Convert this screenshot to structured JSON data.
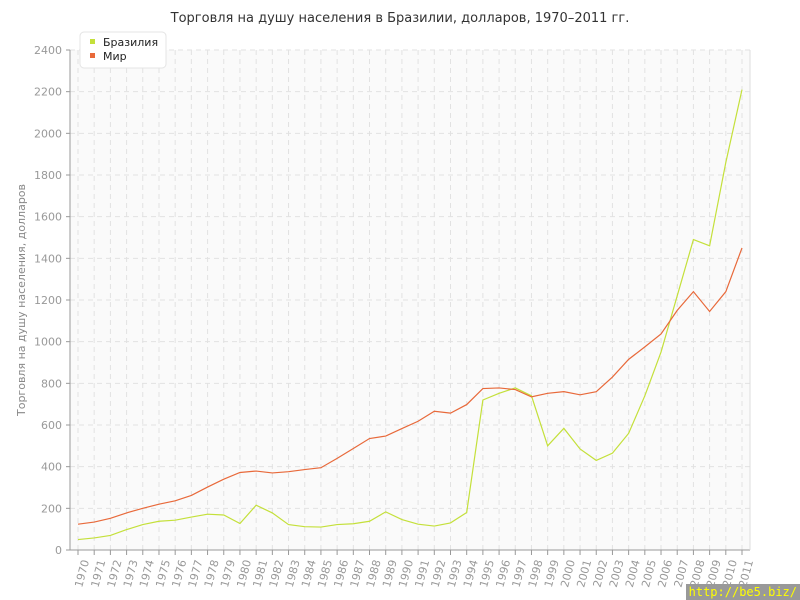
{
  "chart_data": {
    "type": "line",
    "title": "Торговля на душу населения в Бразилии, долларов, 1970–2011 гг.",
    "xlabel": "",
    "ylabel": "Торговля на душу населения, долларов",
    "ylim": [
      0,
      2400
    ],
    "yticks": [
      0,
      200,
      400,
      600,
      800,
      1000,
      1200,
      1400,
      1600,
      1800,
      2000,
      2200,
      2400
    ],
    "grid": true,
    "legend_position": "top-left",
    "x": [
      "1970",
      "1971",
      "1972",
      "1973",
      "1974",
      "1975",
      "1976",
      "1977",
      "1978",
      "1979",
      "1980",
      "1981",
      "1982",
      "1983",
      "1984",
      "1985",
      "1986",
      "1987",
      "1988",
      "1989",
      "1990",
      "1991",
      "1992",
      "1993",
      "1994",
      "1995",
      "1996",
      "1997",
      "1998",
      "1999",
      "2000",
      "2001",
      "2002",
      "2003",
      "2004",
      "2005",
      "2006",
      "2007",
      "2008",
      "2009",
      "2010",
      "2011"
    ],
    "series": [
      {
        "name": "Бразилия",
        "color": "#c4e03a",
        "values": [
          50,
          58,
          70,
          98,
          122,
          138,
          143,
          158,
          172,
          168,
          127,
          215,
          178,
          122,
          112,
          110,
          122,
          126,
          138,
          183,
          146,
          124,
          115,
          130,
          180,
          720,
          752,
          778,
          740,
          500,
          584,
          485,
          430,
          465,
          560,
          740,
          950,
          1220,
          1490,
          1460,
          1860,
          2210
        ]
      },
      {
        "name": "Мир",
        "color": "#e8693a",
        "values": [
          124,
          134,
          152,
          178,
          200,
          220,
          236,
          262,
          302,
          340,
          372,
          379,
          370,
          376,
          386,
          395,
          440,
          487,
          535,
          547,
          583,
          618,
          666,
          657,
          698,
          775,
          778,
          770,
          735,
          752,
          760,
          745,
          760,
          830,
          915,
          975,
          1037,
          1150,
          1240,
          1145,
          1240,
          1450
        ]
      }
    ]
  },
  "watermark": "http://be5.biz/"
}
